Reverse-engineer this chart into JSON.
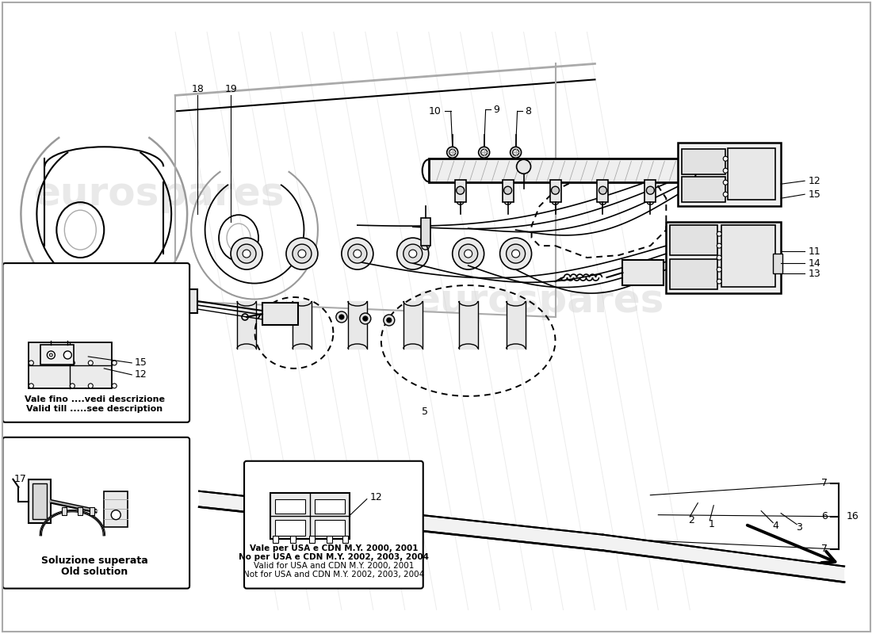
{
  "bg_color": "#ffffff",
  "line_color": "#000000",
  "light_gray": "#cccccc",
  "mid_gray": "#aaaaaa",
  "dark_gray": "#555555",
  "watermark_color": "#d0d0d0",
  "annotations": {
    "vale_fino": "Vale fino ....vedi descrizione",
    "valid_till": "Valid till .....see description",
    "soluzione": "Soluzione superata",
    "old_solution": "Old solution",
    "vale_per_usa": "Vale per USA e CDN M.Y. 2000, 2001",
    "no_per_usa": "No per USA e CDN M.Y. 2002, 2003, 2004",
    "valid_for_usa": "Valid for USA and CDN M.Y. 2000, 2001",
    "not_for_usa": "Not for USA and CDN M.Y. 2002, 2003, 2004"
  },
  "watermark1": "eurospares",
  "watermark2": "eurospares"
}
